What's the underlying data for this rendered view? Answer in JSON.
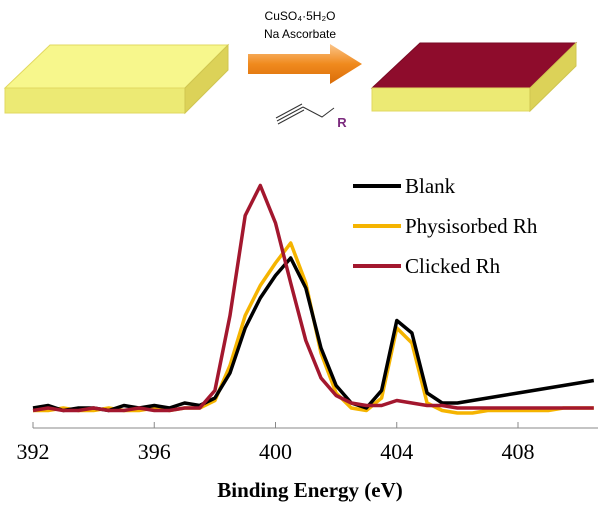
{
  "scheme": {
    "reagent_1": "CuSO₄·5H₂O",
    "reagent_2": "Na Ascorbate",
    "substituent": "R"
  },
  "chart_data": {
    "type": "line",
    "x_label": "Binding Energy (eV)",
    "x": [
      392,
      392.5,
      393,
      393.5,
      394,
      394.5,
      395,
      395.5,
      396,
      396.5,
      397,
      397.5,
      398,
      398.5,
      399,
      399.5,
      400,
      400.5,
      401,
      401.5,
      402,
      402.5,
      403,
      403.5,
      404,
      404.5,
      405,
      405.5,
      406,
      406.5,
      407,
      407.5,
      408,
      408.5,
      409,
      409.5,
      410,
      410.5
    ],
    "series": [
      {
        "name": "Blank",
        "color": "#000000",
        "values": [
          8,
          9,
          7,
          8,
          8,
          7,
          9,
          8,
          9,
          8,
          10,
          9,
          12,
          22,
          40,
          52,
          61,
          68,
          56,
          32,
          17,
          10,
          8,
          15,
          43,
          38,
          14,
          10,
          10,
          11,
          12,
          13,
          14,
          15,
          16,
          17,
          18,
          19
        ]
      },
      {
        "name": "Physisorbed Rh",
        "color": "#f5b400",
        "values": [
          7,
          7,
          8,
          7,
          7,
          8,
          7,
          7,
          8,
          7,
          8,
          8,
          11,
          25,
          45,
          57,
          66,
          74,
          58,
          30,
          14,
          8,
          7,
          12,
          40,
          34,
          10,
          7,
          6,
          6,
          7,
          7,
          7,
          7,
          7,
          8,
          8,
          8
        ]
      },
      {
        "name": "Clicked Rh",
        "color": "#a3172e",
        "values": [
          7,
          8,
          7,
          7,
          8,
          7,
          7,
          8,
          7,
          7,
          8,
          8,
          15,
          45,
          85,
          97,
          82,
          58,
          35,
          20,
          13,
          10,
          9,
          9,
          11,
          10,
          9,
          9,
          8,
          8,
          8,
          8,
          8,
          8,
          8,
          8,
          8,
          8
        ]
      }
    ],
    "xlim": [
      392,
      410.6
    ],
    "xticks": [
      392,
      396,
      400,
      404,
      408
    ],
    "ylim": [
      0,
      100
    ]
  }
}
